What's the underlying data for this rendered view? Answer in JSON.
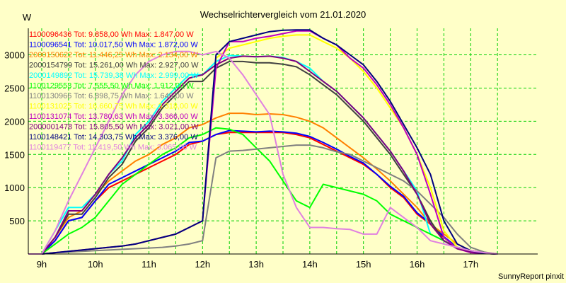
{
  "chart_data": {
    "type": "line",
    "title": "Wechselrichtervergleich vom 21.01.2020",
    "ylabel": "W",
    "xlabel": "",
    "footer": "SunnyReport pinxit",
    "x_unit": "hours",
    "x_start": 8.75,
    "x_step": 0.25,
    "xlim": [
      8.75,
      18.25
    ],
    "ylim": [
      0,
      3400
    ],
    "x_ticks": [
      9,
      10,
      11,
      12,
      13,
      14,
      15,
      16,
      17
    ],
    "x_tick_labels": [
      "9h",
      "10h",
      "11h",
      "12h",
      "13h",
      "14h",
      "15h",
      "16h",
      "17h"
    ],
    "y_ticks": [
      500,
      1000,
      1500,
      2000,
      2500,
      3000
    ],
    "y_tick_labels": [
      "500",
      "1000",
      "1500",
      "2000",
      "2500",
      "3000"
    ],
    "grid": true,
    "legend_position": "top-left",
    "series": [
      {
        "name": "1100096436 Tot: 9.858,00 Wh Max: 1.847,00 W",
        "color": "#ff0000",
        "values": [
          0,
          0,
          200,
          500,
          550,
          800,
          1000,
          1100,
          1200,
          1300,
          1400,
          1500,
          1650,
          1700,
          1800,
          1830,
          1830,
          1830,
          1830,
          1830,
          1800,
          1750,
          1650,
          1550,
          1450,
          1350,
          1200,
          1000,
          850,
          600,
          450,
          250,
          100,
          50,
          20,
          0
        ]
      },
      {
        "name": "1100096541 Tot: 10.017,50 Wh Max: 1.872,00 W",
        "color": "#0000ff",
        "values": [
          0,
          0,
          200,
          500,
          550,
          800,
          1050,
          1150,
          1250,
          1350,
          1450,
          1550,
          1680,
          1700,
          1800,
          1860,
          1850,
          1840,
          1850,
          1840,
          1820,
          1770,
          1680,
          1580,
          1470,
          1370,
          1200,
          1020,
          870,
          620,
          460,
          260,
          100,
          50,
          20,
          0
        ]
      },
      {
        "name": "2000150622 Tot: 11.446,25 Wh Max: 2.134,00 W",
        "color": "#ff8000",
        "values": [
          0,
          0,
          250,
          550,
          650,
          900,
          1100,
          1250,
          1400,
          1500,
          1650,
          1750,
          1900,
          1950,
          2050,
          2120,
          2120,
          2100,
          2110,
          2100,
          2060,
          2000,
          1900,
          1750,
          1600,
          1450,
          1280,
          1100,
          900,
          700,
          450,
          300,
          150,
          50,
          20,
          0
        ]
      },
      {
        "name": "2000154799 Tot: 15.261,00 Wh Max: 2.927,00 W",
        "color": "#404040",
        "values": [
          0,
          0,
          250,
          600,
          600,
          850,
          1150,
          1350,
          1700,
          1900,
          2200,
          2400,
          2600,
          2600,
          2800,
          2900,
          2900,
          2880,
          2880,
          2860,
          2820,
          2700,
          2550,
          2400,
          2200,
          2000,
          1750,
          1500,
          1200,
          900,
          500,
          200,
          80,
          30,
          10,
          0
        ]
      },
      {
        "name": "2000149892 Tot: 15.739,38 Wh Max: 2.999,00 W",
        "color": "#00ffff",
        "values": [
          0,
          0,
          350,
          700,
          700,
          900,
          1200,
          1400,
          1800,
          2000,
          2300,
          2500,
          2700,
          2700,
          2900,
          2990,
          2980,
          2970,
          2980,
          2960,
          2900,
          2800,
          2600,
          2450,
          2250,
          2050,
          1800,
          1550,
          1250,
          950,
          300,
          200,
          80,
          30,
          10,
          0
        ]
      },
      {
        "name": "1100129553 Tot: 7.555,50 Wh Max: 1.912,00 W",
        "color": "#00ff00",
        "values": [
          0,
          0,
          150,
          300,
          400,
          550,
          800,
          1050,
          1200,
          1350,
          1500,
          1600,
          1750,
          1800,
          1900,
          1880,
          1800,
          1600,
          1400,
          1100,
          800,
          700,
          1050,
          1000,
          950,
          900,
          800,
          600,
          500,
          400,
          300,
          200,
          100,
          50,
          20,
          0
        ]
      },
      {
        "name": "1100130966 Tot: 6.898,75 Wh Max: 1.645,00 W",
        "color": "#808080",
        "values": [
          0,
          0,
          20,
          30,
          40,
          50,
          60,
          70,
          80,
          90,
          100,
          120,
          150,
          200,
          1450,
          1550,
          1560,
          1580,
          1600,
          1620,
          1640,
          1640,
          1600,
          1540,
          1500,
          1400,
          1300,
          1200,
          1100,
          950,
          750,
          550,
          300,
          100,
          30,
          0
        ]
      },
      {
        "name": "1100131025 Tot: 16.660,75 Wh Max: 3.318,00 W",
        "color": "#ffff00",
        "values": [
          0,
          0,
          20,
          40,
          60,
          80,
          100,
          120,
          150,
          200,
          250,
          300,
          400,
          500,
          2950,
          3100,
          3150,
          3200,
          3250,
          3280,
          3300,
          3300,
          3200,
          3100,
          2950,
          2750,
          2500,
          2200,
          1900,
          1500,
          1000,
          350,
          100,
          30,
          10,
          0
        ]
      },
      {
        "name": "1100131074 Tot: 13.780,63 Wh Max: 3.366,00 W",
        "color": "#c000c0",
        "values": [
          0,
          0,
          20,
          40,
          60,
          80,
          100,
          120,
          150,
          200,
          250,
          300,
          400,
          500,
          2800,
          3200,
          3200,
          3250,
          3280,
          3320,
          3360,
          3360,
          3250,
          3150,
          2950,
          2800,
          2550,
          2250,
          1900,
          1500,
          900,
          250,
          80,
          20,
          10,
          0
        ]
      },
      {
        "name": "2000001478 Tot: 15.805,50 Wh Max: 3.021,00 W",
        "color": "#800080",
        "values": [
          0,
          0,
          250,
          650,
          650,
          900,
          1200,
          1450,
          1750,
          1950,
          2250,
          2450,
          2650,
          2700,
          2850,
          2950,
          2980,
          2970,
          2980,
          2950,
          2900,
          2750,
          2600,
          2450,
          2250,
          2050,
          1800,
          1550,
          1250,
          900,
          450,
          200,
          80,
          30,
          10,
          0
        ]
      },
      {
        "name": "1100148421 Tot: 14.303,75 Wh Max: 3.376,00 W",
        "color": "#000080",
        "values": [
          0,
          0,
          20,
          40,
          60,
          80,
          100,
          120,
          150,
          200,
          250,
          300,
          400,
          500,
          3000,
          3200,
          3250,
          3300,
          3350,
          3370,
          3376,
          3376,
          3250,
          3150,
          3000,
          2850,
          2600,
          2300,
          1950,
          1600,
          1200,
          500,
          150,
          50,
          10,
          0
        ]
      },
      {
        "name": "1100119477 Tot: 11.419,50 Wh Max: 3.065,00 W",
        "color": "#e080e0",
        "values": [
          0,
          0,
          350,
          800,
          1200,
          1600,
          2000,
          2400,
          2700,
          2900,
          3000,
          3050,
          3050,
          3000,
          3050,
          2950,
          2700,
          2400,
          2100,
          1200,
          700,
          400,
          400,
          380,
          370,
          300,
          300,
          700,
          550,
          400,
          200,
          150,
          100,
          50,
          20,
          0
        ]
      }
    ]
  }
}
